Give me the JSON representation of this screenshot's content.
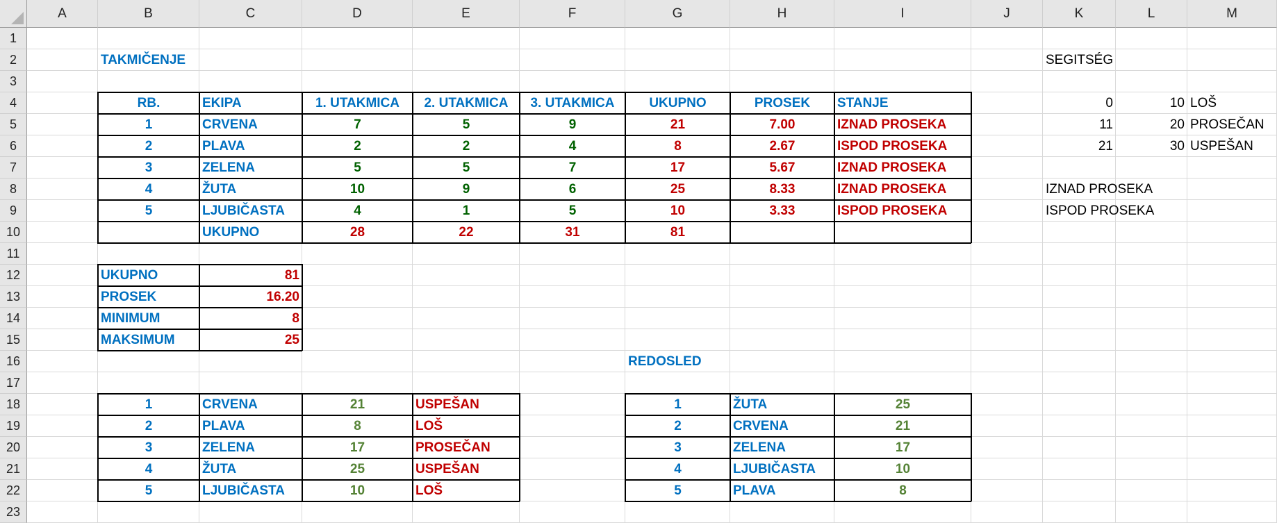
{
  "sheet": {
    "columns": [
      "A",
      "B",
      "C",
      "D",
      "E",
      "F",
      "G",
      "H",
      "I",
      "J",
      "K",
      "L",
      "M"
    ],
    "rows": [
      "1",
      "2",
      "3",
      "4",
      "5",
      "6",
      "7",
      "8",
      "9",
      "10",
      "11",
      "12",
      "13",
      "14",
      "15",
      "16",
      "17",
      "18",
      "19",
      "20",
      "21",
      "22",
      "23"
    ]
  },
  "colors": {
    "header_text": "#0070C0",
    "score_green": "#006100",
    "rank_green": "#548235",
    "result_red": "#C00000"
  },
  "cells": [
    {
      "ref": "B2",
      "v": "TAKMIČENJE",
      "s": "b blue left"
    },
    {
      "ref": "K2",
      "v": "SEGITSÉG",
      "s": "black left"
    },
    {
      "ref": "B4",
      "v": "RB.",
      "s": "b blue center"
    },
    {
      "ref": "C4",
      "v": "EKIPA",
      "s": "b blue left"
    },
    {
      "ref": "D4",
      "v": "1. UTAKMICA",
      "s": "b blue center"
    },
    {
      "ref": "E4",
      "v": "2. UTAKMICA",
      "s": "b blue center"
    },
    {
      "ref": "F4",
      "v": "3. UTAKMICA",
      "s": "b blue center"
    },
    {
      "ref": "G4",
      "v": "UKUPNO",
      "s": "b blue center"
    },
    {
      "ref": "H4",
      "v": "PROSEK",
      "s": "b blue center"
    },
    {
      "ref": "I4",
      "v": "STANJE",
      "s": "b blue left"
    },
    {
      "ref": "K4",
      "v": "0",
      "s": "black right"
    },
    {
      "ref": "L4",
      "v": "10",
      "s": "black right"
    },
    {
      "ref": "M4",
      "v": "LOŠ",
      "s": "black left"
    },
    {
      "ref": "B5",
      "v": "1",
      "s": "b blue center"
    },
    {
      "ref": "C5",
      "v": "CRVENA",
      "s": "b blue left"
    },
    {
      "ref": "D5",
      "v": "7",
      "s": "b green center"
    },
    {
      "ref": "E5",
      "v": "5",
      "s": "b green center"
    },
    {
      "ref": "F5",
      "v": "9",
      "s": "b green center"
    },
    {
      "ref": "G5",
      "v": "21",
      "s": "b red center"
    },
    {
      "ref": "H5",
      "v": "7.00",
      "s": "b red center"
    },
    {
      "ref": "I5",
      "v": "IZNAD PROSEKA",
      "s": "b red left"
    },
    {
      "ref": "K5",
      "v": "11",
      "s": "black right"
    },
    {
      "ref": "L5",
      "v": "20",
      "s": "black right"
    },
    {
      "ref": "M5",
      "v": "PROSEČAN",
      "s": "black left"
    },
    {
      "ref": "B6",
      "v": "2",
      "s": "b blue center"
    },
    {
      "ref": "C6",
      "v": "PLAVA",
      "s": "b blue left"
    },
    {
      "ref": "D6",
      "v": "2",
      "s": "b green center"
    },
    {
      "ref": "E6",
      "v": "2",
      "s": "b green center"
    },
    {
      "ref": "F6",
      "v": "4",
      "s": "b green center"
    },
    {
      "ref": "G6",
      "v": "8",
      "s": "b red center"
    },
    {
      "ref": "H6",
      "v": "2.67",
      "s": "b red center"
    },
    {
      "ref": "I6",
      "v": "ISPOD PROSEKA",
      "s": "b red left"
    },
    {
      "ref": "K6",
      "v": "21",
      "s": "black right"
    },
    {
      "ref": "L6",
      "v": "30",
      "s": "black right"
    },
    {
      "ref": "M6",
      "v": "USPEŠAN",
      "s": "black left"
    },
    {
      "ref": "B7",
      "v": "3",
      "s": "b blue center"
    },
    {
      "ref": "C7",
      "v": "ZELENA",
      "s": "b blue left"
    },
    {
      "ref": "D7",
      "v": "5",
      "s": "b green center"
    },
    {
      "ref": "E7",
      "v": "5",
      "s": "b green center"
    },
    {
      "ref": "F7",
      "v": "7",
      "s": "b green center"
    },
    {
      "ref": "G7",
      "v": "17",
      "s": "b red center"
    },
    {
      "ref": "H7",
      "v": "5.67",
      "s": "b red center"
    },
    {
      "ref": "I7",
      "v": "IZNAD PROSEKA",
      "s": "b red left"
    },
    {
      "ref": "B8",
      "v": "4",
      "s": "b blue center"
    },
    {
      "ref": "C8",
      "v": "ŽUTA",
      "s": "b blue left"
    },
    {
      "ref": "D8",
      "v": "10",
      "s": "b green center"
    },
    {
      "ref": "E8",
      "v": "9",
      "s": "b green center"
    },
    {
      "ref": "F8",
      "v": "6",
      "s": "b green center"
    },
    {
      "ref": "G8",
      "v": "25",
      "s": "b red center"
    },
    {
      "ref": "H8",
      "v": "8.33",
      "s": "b red center"
    },
    {
      "ref": "I8",
      "v": "IZNAD PROSEKA",
      "s": "b red left"
    },
    {
      "ref": "K8",
      "v": "IZNAD PROSEKA",
      "s": "black left"
    },
    {
      "ref": "B9",
      "v": "5",
      "s": "b blue center"
    },
    {
      "ref": "C9",
      "v": "LJUBIČASTA",
      "s": "b blue left"
    },
    {
      "ref": "D9",
      "v": "4",
      "s": "b green center"
    },
    {
      "ref": "E9",
      "v": "1",
      "s": "b green center"
    },
    {
      "ref": "F9",
      "v": "5",
      "s": "b green center"
    },
    {
      "ref": "G9",
      "v": "10",
      "s": "b red center"
    },
    {
      "ref": "H9",
      "v": "3.33",
      "s": "b red center"
    },
    {
      "ref": "I9",
      "v": "ISPOD PROSEKA",
      "s": "b red left"
    },
    {
      "ref": "K9",
      "v": "ISPOD PROSEKA",
      "s": "black left"
    },
    {
      "ref": "C10",
      "v": "UKUPNO",
      "s": "b blue left"
    },
    {
      "ref": "D10",
      "v": "28",
      "s": "b red center"
    },
    {
      "ref": "E10",
      "v": "22",
      "s": "b red center"
    },
    {
      "ref": "F10",
      "v": "31",
      "s": "b red center"
    },
    {
      "ref": "G10",
      "v": "81",
      "s": "b red center"
    },
    {
      "ref": "B12",
      "v": "UKUPNO",
      "s": "b blue left"
    },
    {
      "ref": "C12",
      "v": "81",
      "s": "b red right"
    },
    {
      "ref": "B13",
      "v": "PROSEK",
      "s": "b blue left"
    },
    {
      "ref": "C13",
      "v": "16.20",
      "s": "b red right"
    },
    {
      "ref": "B14",
      "v": "MINIMUM",
      "s": "b blue left"
    },
    {
      "ref": "C14",
      "v": "8",
      "s": "b red right"
    },
    {
      "ref": "B15",
      "v": "MAKSIMUM",
      "s": "b blue left"
    },
    {
      "ref": "C15",
      "v": "25",
      "s": "b red right"
    },
    {
      "ref": "G16",
      "v": "REDOSLED",
      "s": "b blue left"
    },
    {
      "ref": "B18",
      "v": "1",
      "s": "b blue center"
    },
    {
      "ref": "C18",
      "v": "CRVENA",
      "s": "b blue left"
    },
    {
      "ref": "D18",
      "v": "21",
      "s": "b lgreen center"
    },
    {
      "ref": "E18",
      "v": "USPEŠAN",
      "s": "b red left"
    },
    {
      "ref": "G18",
      "v": "1",
      "s": "b blue center"
    },
    {
      "ref": "H18",
      "v": "ŽUTA",
      "s": "b blue left"
    },
    {
      "ref": "I18",
      "v": "25",
      "s": "b lgreen center"
    },
    {
      "ref": "B19",
      "v": "2",
      "s": "b blue center"
    },
    {
      "ref": "C19",
      "v": "PLAVA",
      "s": "b blue left"
    },
    {
      "ref": "D19",
      "v": "8",
      "s": "b lgreen center"
    },
    {
      "ref": "E19",
      "v": "LOŠ",
      "s": "b red left"
    },
    {
      "ref": "G19",
      "v": "2",
      "s": "b blue center"
    },
    {
      "ref": "H19",
      "v": "CRVENA",
      "s": "b blue left"
    },
    {
      "ref": "I19",
      "v": "21",
      "s": "b lgreen center"
    },
    {
      "ref": "B20",
      "v": "3",
      "s": "b blue center"
    },
    {
      "ref": "C20",
      "v": "ZELENA",
      "s": "b blue left"
    },
    {
      "ref": "D20",
      "v": "17",
      "s": "b lgreen center"
    },
    {
      "ref": "E20",
      "v": "PROSEČAN",
      "s": "b red left"
    },
    {
      "ref": "G20",
      "v": "3",
      "s": "b blue center"
    },
    {
      "ref": "H20",
      "v": "ZELENA",
      "s": "b blue left"
    },
    {
      "ref": "I20",
      "v": "17",
      "s": "b lgreen center"
    },
    {
      "ref": "B21",
      "v": "4",
      "s": "b blue center"
    },
    {
      "ref": "C21",
      "v": "ŽUTA",
      "s": "b blue left"
    },
    {
      "ref": "D21",
      "v": "25",
      "s": "b lgreen center"
    },
    {
      "ref": "E21",
      "v": "USPEŠAN",
      "s": "b red left"
    },
    {
      "ref": "G21",
      "v": "4",
      "s": "b blue center"
    },
    {
      "ref": "H21",
      "v": "LJUBIČASTA",
      "s": "b blue left"
    },
    {
      "ref": "I21",
      "v": "10",
      "s": "b lgreen center"
    },
    {
      "ref": "B22",
      "v": "5",
      "s": "b blue center"
    },
    {
      "ref": "C22",
      "v": "LJUBIČASTA",
      "s": "b blue left"
    },
    {
      "ref": "D22",
      "v": "10",
      "s": "b lgreen center"
    },
    {
      "ref": "E22",
      "v": "LOŠ",
      "s": "b red left"
    },
    {
      "ref": "G22",
      "v": "5",
      "s": "b blue center"
    },
    {
      "ref": "H22",
      "v": "PLAVA",
      "s": "b blue left"
    },
    {
      "ref": "I22",
      "v": "8",
      "s": "b lgreen center"
    }
  ]
}
